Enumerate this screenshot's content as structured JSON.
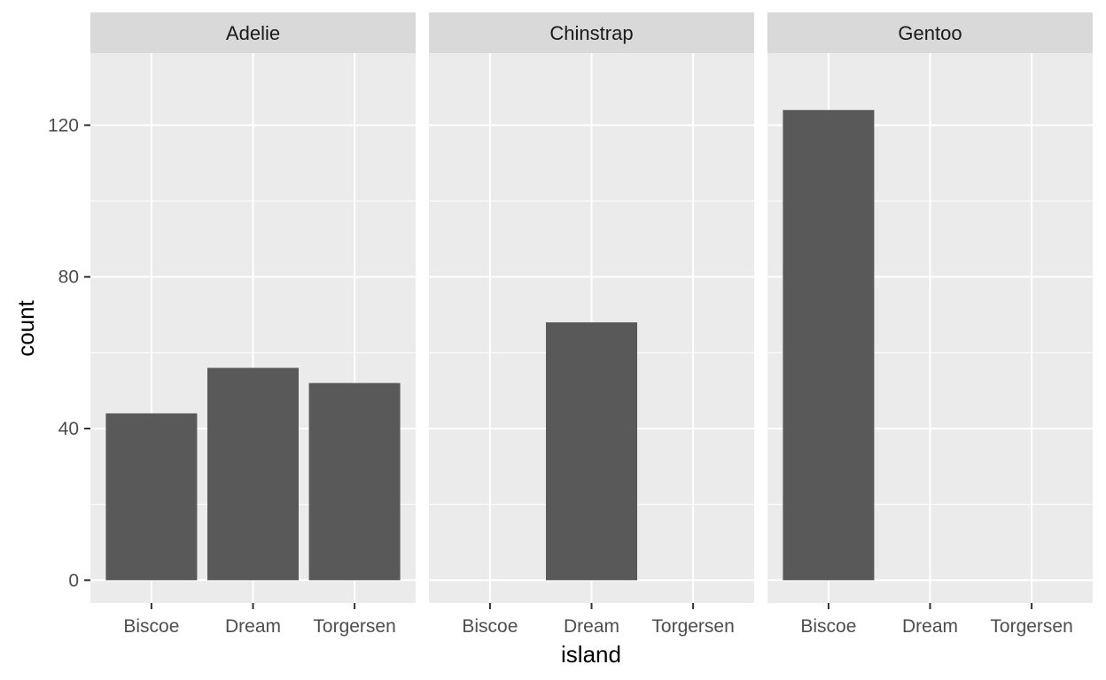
{
  "chart_data": {
    "type": "bar",
    "xlabel": "island",
    "ylabel": "count",
    "ylim": [
      -6,
      139
    ],
    "yticks": [
      0,
      40,
      80,
      120
    ],
    "categories": [
      "Biscoe",
      "Dream",
      "Torgersen"
    ],
    "facets": [
      {
        "name": "Adelie",
        "values": [
          44,
          56,
          52
        ]
      },
      {
        "name": "Chinstrap",
        "values": [
          0,
          68,
          0
        ]
      },
      {
        "name": "Gentoo",
        "values": [
          124,
          0,
          0
        ]
      }
    ],
    "bar_color": "#595959",
    "panel_color": "#ebebeb",
    "strip_color": "#d9d9d9",
    "grid": true
  }
}
